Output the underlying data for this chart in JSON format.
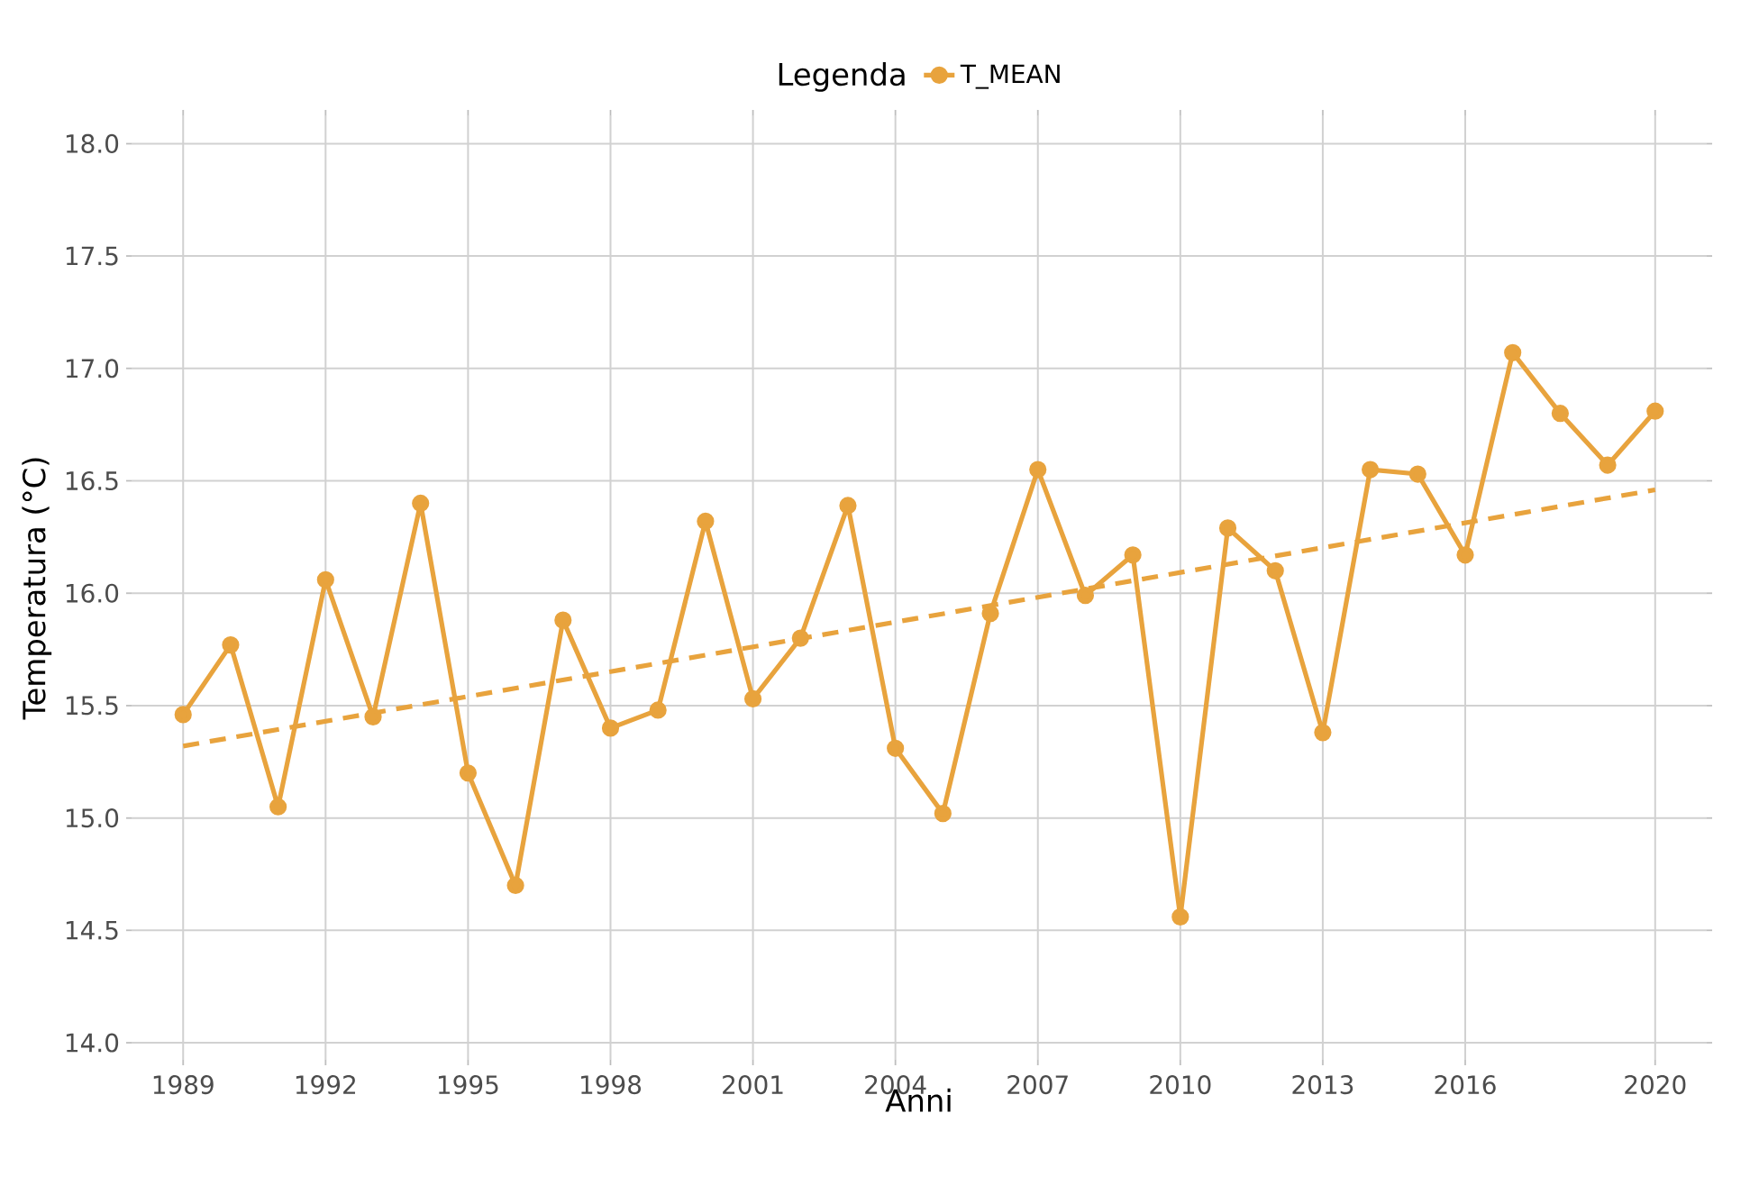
{
  "chart_data": {
    "type": "line",
    "xlabel": "Anni",
    "ylabel": "Temperatura (°C)",
    "legend_title": "Legenda",
    "x": [
      1989,
      1990,
      1991,
      1992,
      1993,
      1994,
      1995,
      1996,
      1997,
      1998,
      1999,
      2000,
      2001,
      2002,
      2003,
      2004,
      2005,
      2006,
      2007,
      2008,
      2009,
      2010,
      2011,
      2012,
      2013,
      2014,
      2015,
      2016,
      2017,
      2018,
      2019,
      2020
    ],
    "series": [
      {
        "name": "T_MEAN",
        "color": "#e8a33d",
        "marker": "circle",
        "line_style": "solid",
        "values": [
          15.46,
          15.77,
          15.05,
          16.06,
          15.45,
          16.4,
          15.2,
          14.7,
          15.88,
          15.4,
          15.48,
          16.32,
          15.53,
          15.8,
          16.39,
          15.31,
          15.02,
          15.91,
          16.55,
          15.99,
          16.17,
          14.56,
          16.29,
          16.1,
          15.38,
          16.55,
          16.53,
          16.17,
          17.07,
          16.8,
          16.57,
          16.81
        ]
      },
      {
        "type": "line",
        "color": "#e8a33d",
        "marker": "none",
        "line_style": "dashed",
        "x": [
          1989,
          2020
        ],
        "values": [
          15.32,
          16.46
        ]
      }
    ],
    "xlim": [
      1987.8,
      2021.2
    ],
    "ylim": [
      13.9,
      18.15
    ],
    "xticks": [
      1989,
      1992,
      1995,
      1998,
      2001,
      2004,
      2007,
      2010,
      2013,
      2016,
      2020
    ],
    "yticks": [
      {
        "value": 14,
        "label": "14.0"
      },
      {
        "value": 14.5,
        "label": "14.5"
      },
      {
        "value": 15,
        "label": "15.0"
      },
      {
        "value": 15.5,
        "label": "15.5"
      },
      {
        "value": 16,
        "label": "16.0"
      },
      {
        "value": 16.5,
        "label": "16.5"
      },
      {
        "value": 17,
        "label": "17.0"
      },
      {
        "value": 17.5,
        "label": "17.5"
      },
      {
        "value": 18,
        "label": "18.0"
      }
    ],
    "grid": true,
    "legend": "top"
  }
}
